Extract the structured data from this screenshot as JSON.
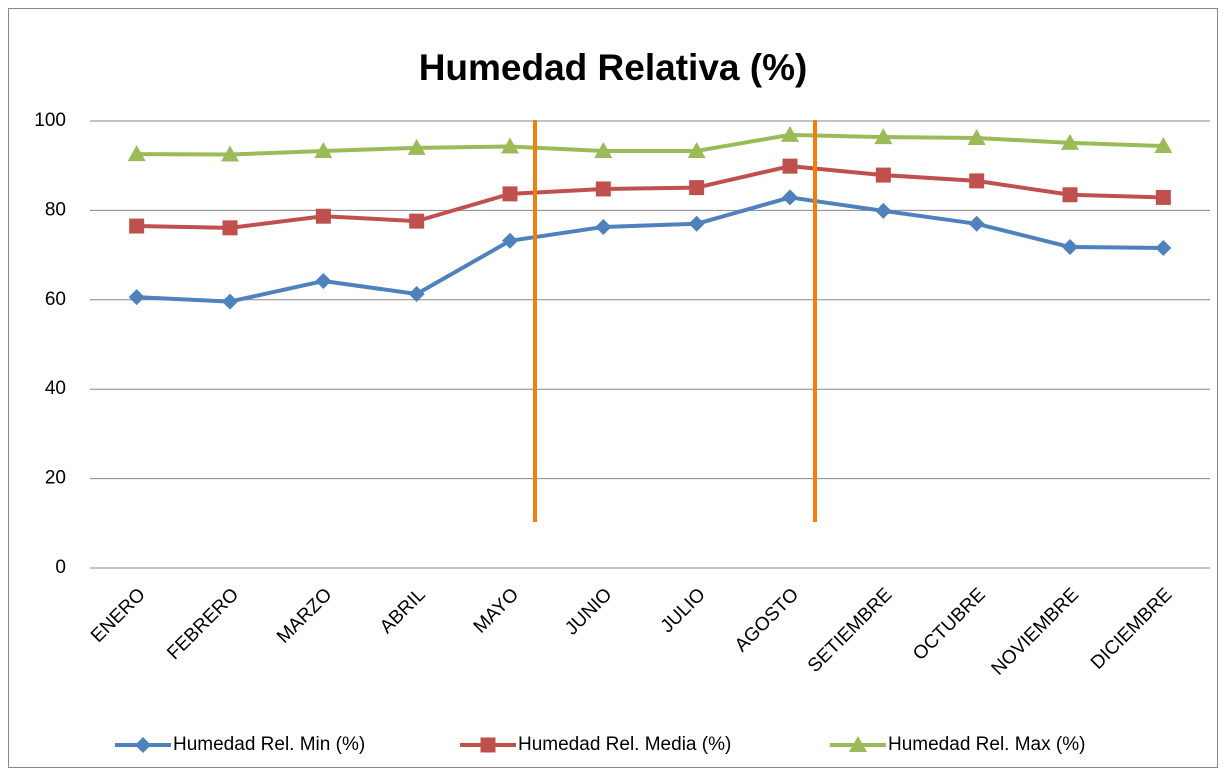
{
  "chart_data": {
    "type": "line",
    "title": "Humedad Relativa (%)",
    "categories": [
      "ENERO",
      "FEBRERO",
      "MARZO",
      "ABRIL",
      "MAYO",
      "JUNIO",
      "JULIO",
      "AGOSTO",
      "SETIEMBRE",
      "OCTUBRE",
      "NOVIEMBRE",
      "DICIEMBRE"
    ],
    "series": [
      {
        "name": "Humedad Rel. Min (%)",
        "color": "#4f81bd",
        "marker": "diamond",
        "values": [
          60.6,
          59.6,
          64.2,
          61.3,
          73.2,
          76.3,
          77.0,
          82.9,
          79.9,
          77.0,
          71.8,
          71.6
        ]
      },
      {
        "name": "Humedad Rel. Media (%)",
        "color": "#c0504d",
        "marker": "square",
        "values": [
          76.5,
          76.1,
          78.7,
          77.6,
          83.7,
          84.8,
          85.1,
          89.9,
          87.9,
          86.6,
          83.5,
          82.9
        ]
      },
      {
        "name": "Humedad Rel. Max (%)",
        "color": "#9bbb59",
        "marker": "triangle",
        "values": [
          92.6,
          92.5,
          93.3,
          94.0,
          94.3,
          93.3,
          93.3,
          96.9,
          96.4,
          96.2,
          95.1,
          94.4
        ]
      }
    ],
    "ylim": [
      0,
      100
    ],
    "yticks": [
      0,
      20,
      40,
      60,
      80,
      100
    ],
    "grid": true,
    "legend": "bottom"
  }
}
